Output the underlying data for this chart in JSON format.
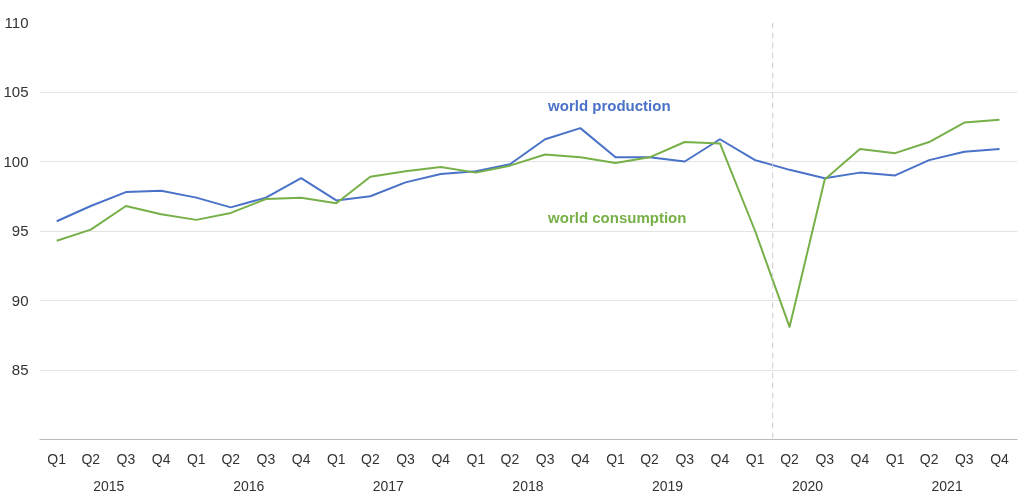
{
  "chart_data": {
    "type": "line",
    "x": [
      "2015-02-15",
      "2015-05-15",
      "2015-08-15",
      "2015-11-15",
      "2016-02-15",
      "2016-05-15",
      "2016-08-15",
      "2016-11-15",
      "2017-02-15",
      "2017-05-15",
      "2017-08-15",
      "2017-11-15",
      "2018-02-15",
      "2018-05-15",
      "2018-08-15",
      "2018-11-15",
      "2019-02-15",
      "2019-05-15",
      "2019-08-15",
      "2019-11-15",
      "2020-02-15",
      "2020-05-15",
      "2020-08-15",
      "2020-11-15",
      "2021-02-15",
      "2021-05-15",
      "2021-08-15",
      "2021-11-15"
    ],
    "series": [
      {
        "name": "world production",
        "color": "#4a72c8",
        "values": [
          95.7,
          96.8,
          97.8,
          97.9,
          97.4,
          96.7,
          97.4,
          98.8,
          97.2,
          97.5,
          98.5,
          99.1,
          99.3,
          99.8,
          101.6,
          102.4,
          100.3,
          100.3,
          100.0,
          101.6,
          100.1,
          99.4,
          98.8,
          99.2,
          99.0,
          100.1,
          100.7,
          100.9
        ]
      },
      {
        "name": "world consumption",
        "color": "#77b048",
        "values": [
          94.3,
          95.1,
          96.8,
          96.2,
          95.8,
          96.3,
          97.3,
          97.4,
          97.0,
          98.9,
          99.3,
          99.6,
          99.2,
          99.7,
          100.5,
          100.3,
          99.9,
          100.3,
          101.4,
          101.3,
          95.0,
          88.1,
          98.7,
          100.9,
          100.6,
          101.4,
          102.8,
          103.0
        ]
      }
    ],
    "xlim": [
      "2015-01-01",
      "2022-01-01"
    ],
    "xticks": [
      {
        "value": "2015-02-15",
        "label": "Q1"
      },
      {
        "value": "2015-05-15",
        "label": "Q2"
      },
      {
        "value": "2015-08-15",
        "label": "Q3"
      },
      {
        "value": "2015-11-15",
        "label": "Q4"
      },
      {
        "value": "2016-02-15",
        "label": "Q1"
      },
      {
        "value": "2016-05-15",
        "label": "Q2"
      },
      {
        "value": "2016-08-15",
        "label": "Q3"
      },
      {
        "value": "2016-11-15",
        "label": "Q4"
      },
      {
        "value": "2017-02-15",
        "label": "Q1"
      },
      {
        "value": "2017-05-15",
        "label": "Q2"
      },
      {
        "value": "2017-08-15",
        "label": "Q3"
      },
      {
        "value": "2017-11-15",
        "label": "Q4"
      },
      {
        "value": "2018-02-15",
        "label": "Q1"
      },
      {
        "value": "2018-05-15",
        "label": "Q2"
      },
      {
        "value": "2018-08-15",
        "label": "Q3"
      },
      {
        "value": "2018-11-15",
        "label": "Q4"
      },
      {
        "value": "2019-02-15",
        "label": "Q1"
      },
      {
        "value": "2019-05-15",
        "label": "Q2"
      },
      {
        "value": "2019-08-15",
        "label": "Q3"
      },
      {
        "value": "2019-11-15",
        "label": "Q4"
      },
      {
        "value": "2020-02-15",
        "label": "Q1"
      },
      {
        "value": "2020-05-15",
        "label": "Q2"
      },
      {
        "value": "2020-08-15",
        "label": "Q3"
      },
      {
        "value": "2020-11-15",
        "label": "Q4"
      },
      {
        "value": "2021-02-15",
        "label": "Q1"
      },
      {
        "value": "2021-05-15",
        "label": "Q2"
      },
      {
        "value": "2021-08-15",
        "label": "Q3"
      },
      {
        "value": "2021-11-15",
        "label": "Q4"
      }
    ],
    "x2lim": [
      "2015-01-01",
      "2022-01-01"
    ],
    "x2ticks": [
      {
        "value": "2015-07-01",
        "label": "2015"
      },
      {
        "value": "2016-07-01",
        "label": "2016"
      },
      {
        "value": "2017-07-01",
        "label": "2017"
      },
      {
        "value": "2018-07-01",
        "label": "2018"
      },
      {
        "value": "2019-07-01",
        "label": "2019"
      },
      {
        "value": "2020-07-01",
        "label": "2020"
      },
      {
        "value": "2021-07-01",
        "label": "2021"
      }
    ],
    "ylim": [
      80,
      110
    ],
    "yticks": [
      85,
      90,
      95,
      100,
      105,
      110
    ],
    "grid": "y",
    "ref_lines": [
      {
        "axis": "x",
        "value": "2020-04-01",
        "color": "#cccccc",
        "line_style": "dashed"
      }
    ]
  }
}
